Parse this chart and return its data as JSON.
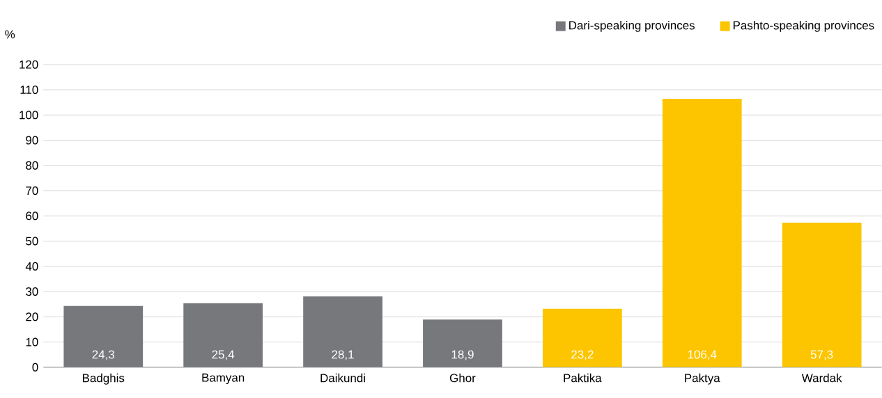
{
  "chart_data": {
    "type": "bar",
    "ylabel": "%",
    "categories": [
      "Badghis",
      "Bamyan",
      "Daikundi",
      "Ghor",
      "Paktika",
      "Paktya",
      "Wardak"
    ],
    "series": [
      {
        "name": "Dari-speaking provinces",
        "color": "#77787b",
        "values": [
          24.3,
          25.4,
          28.1,
          18.9,
          null,
          null,
          null
        ],
        "value_labels": [
          "24,3",
          "25,4",
          "28,1",
          "18,9",
          null,
          null,
          null
        ]
      },
      {
        "name": "Pashto-speaking provinces",
        "color": "#fcc500",
        "values": [
          null,
          null,
          null,
          null,
          23.2,
          106.4,
          57.3
        ],
        "value_labels": [
          null,
          null,
          null,
          null,
          "23,2",
          "106,4",
          "57,3"
        ]
      }
    ],
    "ylim": [
      0,
      120
    ],
    "yticks": [
      0,
      10,
      20,
      30,
      40,
      50,
      60,
      70,
      80,
      90,
      100,
      110,
      120
    ],
    "grid": "y",
    "legend": "top right"
  }
}
